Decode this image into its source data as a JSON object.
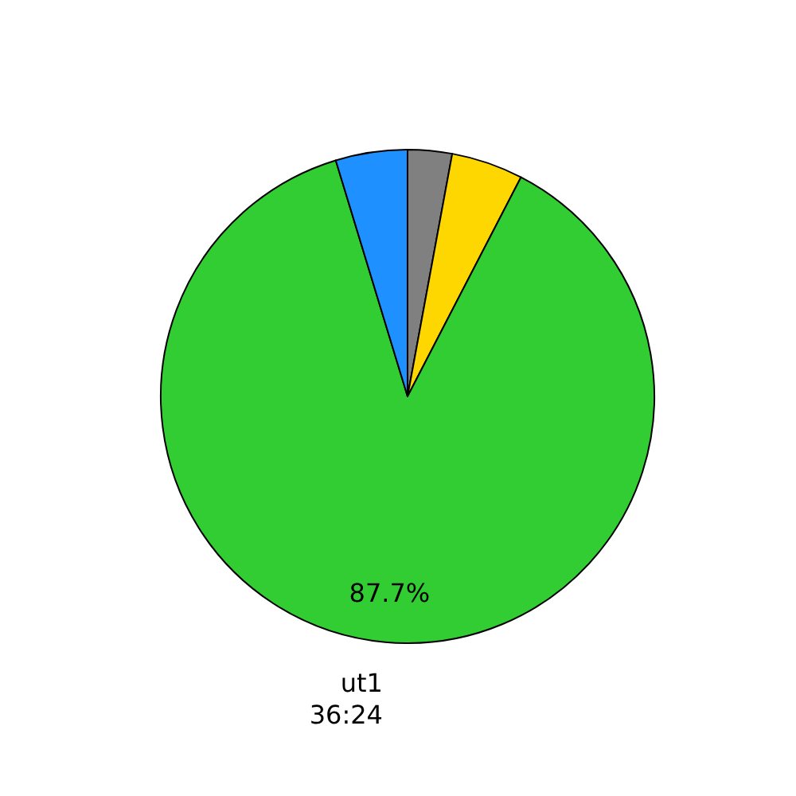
{
  "chart_data": {
    "type": "pie",
    "categories": [
      null,
      null,
      "ut1\n36:24",
      null
    ],
    "values": [
      2.9,
      4.7,
      87.7,
      4.7
    ],
    "colors": [
      "#808080",
      "#ffd700",
      "#32cd32",
      "#1e90ff"
    ],
    "value_labels": [
      null,
      null,
      "87.7%",
      null
    ],
    "legend": false
  }
}
